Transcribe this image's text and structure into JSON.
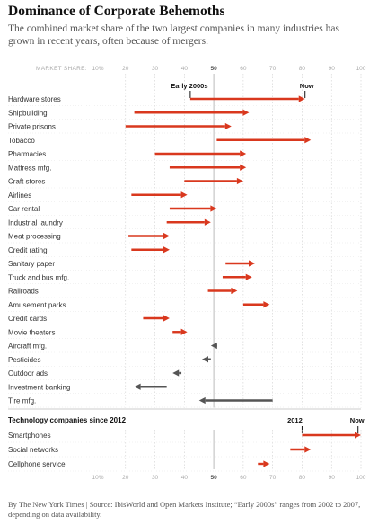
{
  "title": "Dominance of Corporate Behemoths",
  "subtitle": "The combined market share of the two largest companies in many industries has grown in recent years, often because of mergers.",
  "footer": "By The New York Times | Source: IbisWorld and Open Markets Institute; “Early 2000s” ranges from 2002 to 2007, depending on data availability.",
  "colors": {
    "grow": "#d9381e",
    "shrink": "#555555",
    "grid": "#cfcfcf",
    "axis_center": "#bbbbbb"
  },
  "chart_data": [
    {
      "type": "arrow-range",
      "axis_title": "MARKET SHARE:",
      "tick_labels": [
        "10%",
        "20",
        "30",
        "40",
        "50",
        "60",
        "70",
        "80",
        "90",
        "100"
      ],
      "ticks": [
        10,
        20,
        30,
        40,
        50,
        60,
        70,
        80,
        90,
        100
      ],
      "xlim": [
        10,
        100
      ],
      "start_label": "Early 2000s",
      "end_label": "Now",
      "start_marker": 42,
      "end_marker": 81,
      "rows": [
        {
          "label": "Hardware stores",
          "start": 42,
          "end": 81
        },
        {
          "label": "Shipbuilding",
          "start": 23,
          "end": 62
        },
        {
          "label": "Private prisons",
          "start": 20,
          "end": 56
        },
        {
          "label": "Tobacco",
          "start": 51,
          "end": 83
        },
        {
          "label": "Pharmacies",
          "start": 30,
          "end": 61
        },
        {
          "label": "Mattress mfg.",
          "start": 35,
          "end": 61
        },
        {
          "label": "Craft stores",
          "start": 40,
          "end": 60
        },
        {
          "label": "Airlines",
          "start": 22,
          "end": 41
        },
        {
          "label": "Car rental",
          "start": 35,
          "end": 51
        },
        {
          "label": "Industrial laundry",
          "start": 34,
          "end": 49
        },
        {
          "label": "Meat processing",
          "start": 21,
          "end": 35
        },
        {
          "label": "Credit rating",
          "start": 22,
          "end": 35
        },
        {
          "label": "Sanitary paper",
          "start": 54,
          "end": 64
        },
        {
          "label": "Truck and bus mfg.",
          "start": 53,
          "end": 63
        },
        {
          "label": "Railroads",
          "start": 48,
          "end": 58
        },
        {
          "label": "Amusement parks",
          "start": 60,
          "end": 69
        },
        {
          "label": "Credit cards",
          "start": 26,
          "end": 35
        },
        {
          "label": "Movie theaters",
          "start": 36,
          "end": 41
        },
        {
          "label": "Aircraft mfg.",
          "start": 51,
          "end": 49
        },
        {
          "label": "Pesticides",
          "start": 49,
          "end": 46
        },
        {
          "label": "Outdoor ads",
          "start": 39,
          "end": 36
        },
        {
          "label": "Investment banking",
          "start": 34,
          "end": 23
        },
        {
          "label": "Tire mfg.",
          "start": 70,
          "end": 45
        }
      ]
    },
    {
      "type": "arrow-range",
      "section_title": "Technology companies since 2012",
      "tick_labels": [
        "10%",
        "20",
        "30",
        "40",
        "50",
        "60",
        "70",
        "80",
        "90",
        "100"
      ],
      "ticks": [
        10,
        20,
        30,
        40,
        50,
        60,
        70,
        80,
        90,
        100
      ],
      "xlim": [
        10,
        100
      ],
      "start_label": "2012",
      "end_label": "Now",
      "start_marker": 80,
      "end_marker": 99,
      "rows": [
        {
          "label": "Smartphones",
          "start": 80,
          "end": 100
        },
        {
          "label": "Social networks",
          "start": 76,
          "end": 83
        },
        {
          "label": "Cellphone service",
          "start": 65,
          "end": 69
        }
      ]
    }
  ]
}
